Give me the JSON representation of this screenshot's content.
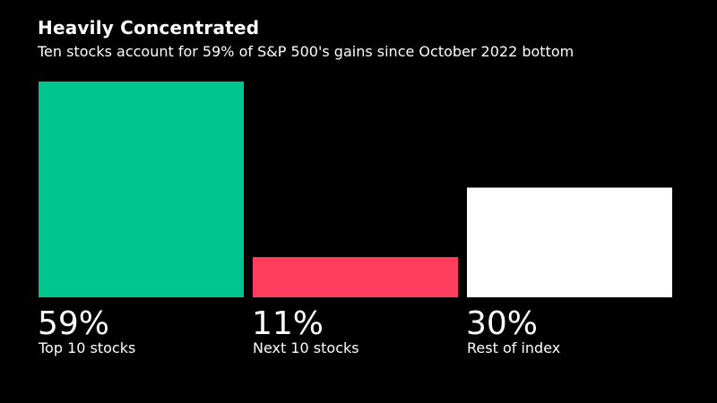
{
  "chart_data": {
    "type": "bar",
    "title": "Heavily Concentrated",
    "subtitle": "Ten stocks account for 59% of S&P 500's gains since October 2022 bottom",
    "categories": [
      "Top 10 stocks",
      "Next 10 stocks",
      "Rest of index"
    ],
    "values": [
      59,
      11,
      30
    ],
    "value_labels": [
      "59%",
      "11%",
      "30%"
    ],
    "colors": [
      "#00c58e",
      "#ff3d5f",
      "#ffffff"
    ],
    "ylim": [
      0,
      59
    ],
    "xlabel": "",
    "ylabel": "",
    "grid": false,
    "legend": "none"
  }
}
